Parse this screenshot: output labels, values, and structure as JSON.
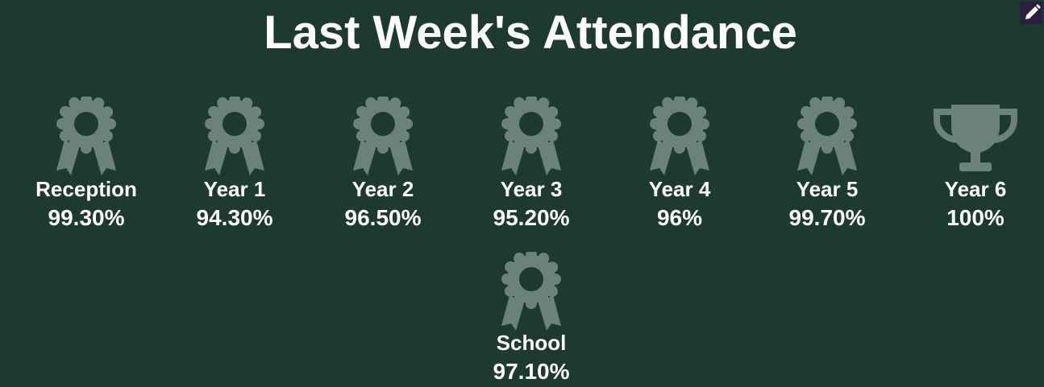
{
  "title": "Last Week's Attendance",
  "items": [
    {
      "label": "Reception",
      "value": "99.30%"
    },
    {
      "label": "Year 1",
      "value": "94.30%"
    },
    {
      "label": "Year 2",
      "value": "96.50%"
    },
    {
      "label": "Year 3",
      "value": "95.20%"
    },
    {
      "label": "Year 4",
      "value": "96%"
    },
    {
      "label": "Year 5",
      "value": "99.70%"
    },
    {
      "label": "Year 6",
      "value": "100%"
    }
  ],
  "school": {
    "label": "School",
    "value": "97.10%"
  }
}
